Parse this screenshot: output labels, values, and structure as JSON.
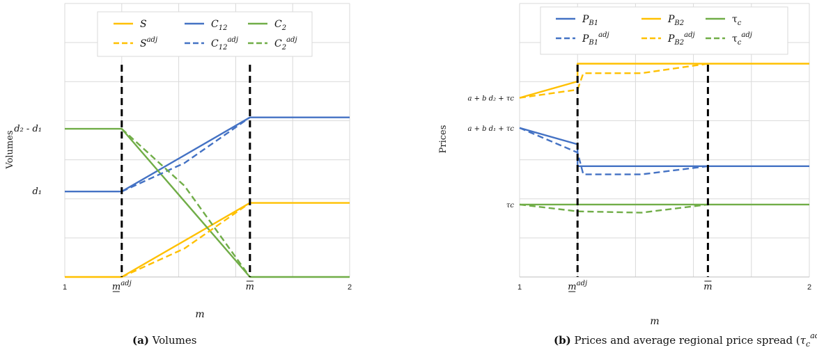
{
  "colors": {
    "yellow": "#FFC000",
    "blue": "#4472C4",
    "green": "#70AD47",
    "grid": "#d9d9d9"
  },
  "chart_data": [
    {
      "type": "line",
      "caption_label": "(a)",
      "caption_text": "Volumes",
      "xlabel": "m",
      "ylabel": "Volumes",
      "x_ticks": [
        {
          "x": 1.0,
          "label": "1"
        },
        {
          "x": 1.2,
          "label": "m",
          "accent": "under",
          "sup": "adj"
        },
        {
          "x": 1.65,
          "label": "m",
          "accent": "over",
          "sup": ""
        },
        {
          "x": 2.0,
          "label": "2"
        }
      ],
      "y_ticks": [
        {
          "y": 0.52,
          "label": "d₂ - d₁"
        },
        {
          "y": 0.3,
          "label": "d₁"
        }
      ],
      "xlim": [
        1.0,
        2.0
      ],
      "ylim": [
        0,
        0.96
      ],
      "vlines": [
        1.2,
        1.65
      ],
      "grid": true,
      "legend": [
        {
          "name": "S",
          "sup": "",
          "color": "yellow",
          "dash": false
        },
        {
          "name": "C",
          "sub": "12",
          "sup": "",
          "color": "blue",
          "dash": false
        },
        {
          "name": "C",
          "sub": "2",
          "sup": "",
          "color": "green",
          "dash": false
        },
        {
          "name": "S",
          "sup": "adj",
          "color": "yellow",
          "dash": true
        },
        {
          "name": "C",
          "sub": "12",
          "sup": "adj",
          "color": "blue",
          "dash": true
        },
        {
          "name": "C",
          "sub": "2",
          "sup": "adj",
          "color": "green",
          "dash": true
        }
      ],
      "series": [
        {
          "color": "yellow",
          "dash": false,
          "x": [
            1.0,
            1.2,
            1.65,
            2.0
          ],
          "y": [
            0.0,
            0.0,
            0.26,
            0.26
          ]
        },
        {
          "color": "blue",
          "dash": false,
          "x": [
            1.0,
            1.2,
            1.65,
            2.0
          ],
          "y": [
            0.3,
            0.3,
            0.56,
            0.56
          ]
        },
        {
          "color": "green",
          "dash": false,
          "x": [
            1.0,
            1.2,
            1.65,
            2.0
          ],
          "y": [
            0.52,
            0.52,
            0.0,
            0.0
          ]
        },
        {
          "color": "yellow",
          "dash": true,
          "x": [
            1.2,
            1.42,
            1.65
          ],
          "y": [
            0.0,
            0.1,
            0.26
          ]
        },
        {
          "color": "blue",
          "dash": true,
          "x": [
            1.2,
            1.42,
            1.65
          ],
          "y": [
            0.3,
            0.4,
            0.56
          ]
        },
        {
          "color": "green",
          "dash": true,
          "x": [
            1.2,
            1.42,
            1.65
          ],
          "y": [
            0.52,
            0.32,
            0.0
          ]
        }
      ]
    },
    {
      "type": "line",
      "caption_label": "(b)",
      "caption_text": "Prices and average regional price spread (",
      "caption_math": "τ",
      "caption_sub": "c",
      "caption_sup": "adj",
      "caption_close": ")",
      "xlabel": "m",
      "ylabel": "Prices",
      "x_ticks": [
        {
          "x": 1.0,
          "label": "1"
        },
        {
          "x": 1.2,
          "label": "m",
          "accent": "under",
          "sup": "adj"
        },
        {
          "x": 1.65,
          "label": "m",
          "accent": "over",
          "sup": ""
        },
        {
          "x": 2.0,
          "label": "2"
        }
      ],
      "y_ticks": [
        {
          "y": 0.655,
          "label": "a + b d₂ + τc"
        },
        {
          "y": 0.545,
          "label": "a + b d₁ + τc"
        },
        {
          "y": 0.265,
          "label": "τc"
        }
      ],
      "xlim": [
        1.0,
        2.0
      ],
      "ylim": [
        0,
        1.0
      ],
      "vlines": [
        1.2,
        1.65
      ],
      "grid": true,
      "legend": [
        {
          "name": "P",
          "sub": "B1",
          "sup": "",
          "color": "blue",
          "dash": false
        },
        {
          "name": "P",
          "sub": "B2",
          "sup": "",
          "color": "yellow",
          "dash": false
        },
        {
          "name": "τ",
          "sub": "c",
          "sup": "",
          "color": "green",
          "dash": false,
          "upright": true
        },
        {
          "name": "P",
          "sub": "B1",
          "sup": "adj",
          "color": "blue",
          "dash": true
        },
        {
          "name": "P",
          "sub": "B2",
          "sup": "adj",
          "color": "yellow",
          "dash": true
        },
        {
          "name": "τ",
          "sub": "c",
          "sup": "adj",
          "color": "green",
          "dash": true,
          "upright": true
        }
      ],
      "series": [
        {
          "color": "yellow",
          "dash": false,
          "x": [
            1.0,
            1.2,
            1.2,
            2.0
          ],
          "y": [
            0.655,
            0.715,
            0.78,
            0.78
          ]
        },
        {
          "color": "blue",
          "dash": false,
          "x": [
            1.0,
            1.2,
            1.2,
            2.0
          ],
          "y": [
            0.545,
            0.485,
            0.405,
            0.405
          ]
        },
        {
          "color": "green",
          "dash": false,
          "x": [
            1.0,
            2.0
          ],
          "y": [
            0.265,
            0.265
          ]
        },
        {
          "color": "yellow",
          "dash": true,
          "x": [
            1.0,
            1.2,
            1.22,
            1.42,
            1.65
          ],
          "y": [
            0.655,
            0.685,
            0.745,
            0.745,
            0.78
          ]
        },
        {
          "color": "blue",
          "dash": true,
          "x": [
            1.0,
            1.2,
            1.22,
            1.42,
            1.65
          ],
          "y": [
            0.545,
            0.455,
            0.375,
            0.375,
            0.405
          ]
        },
        {
          "color": "green",
          "dash": true,
          "x": [
            1.0,
            1.2,
            1.42,
            1.65
          ],
          "y": [
            0.265,
            0.24,
            0.235,
            0.265
          ]
        }
      ]
    }
  ]
}
